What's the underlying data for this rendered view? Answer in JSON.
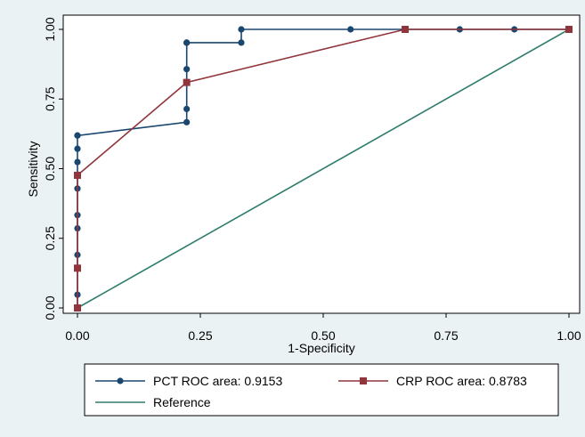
{
  "chart_data": {
    "type": "line",
    "title": "",
    "xlabel": "1-Specificity",
    "ylabel": "Sensitivity",
    "xlim": [
      0,
      1
    ],
    "ylim": [
      0,
      1
    ],
    "x_ticks": [
      "0.00",
      "0.25",
      "0.50",
      "0.75",
      "1.00"
    ],
    "y_ticks": [
      "0.00",
      "0.25",
      "0.50",
      "0.75",
      "1.00"
    ],
    "grid": false,
    "legend_position": "bottom",
    "series": [
      {
        "name": "PCT ROC area: 0.9153",
        "color": "#1a476f",
        "marker": "circle",
        "x": [
          0,
          0,
          0,
          0,
          0,
          0,
          0,
          0,
          0,
          0,
          0.2222,
          0.2222,
          0.2222,
          0.2222,
          0.2222,
          0.3333,
          0.3333,
          0.5556,
          0.6667,
          0.7778,
          0.8889,
          1
        ],
        "y": [
          0,
          0.0476,
          0.1905,
          0.2857,
          0.3333,
          0.4286,
          0.5238,
          0.5714,
          0.619,
          0.619,
          0.6667,
          0.7143,
          0.8571,
          0.9524,
          0.9524,
          0.9524,
          1,
          1,
          1,
          1,
          1,
          1
        ]
      },
      {
        "name": "CRP ROC area: 0.8783",
        "color": "#90353b",
        "marker": "square",
        "x": [
          0,
          0,
          0,
          0.2222,
          0.6667,
          1
        ],
        "y": [
          0,
          0.1429,
          0.4762,
          0.8095,
          1,
          1
        ]
      },
      {
        "name": "Reference",
        "color": "#2e7d6e",
        "marker": "none",
        "x": [
          0,
          1
        ],
        "y": [
          0,
          1
        ]
      }
    ]
  }
}
